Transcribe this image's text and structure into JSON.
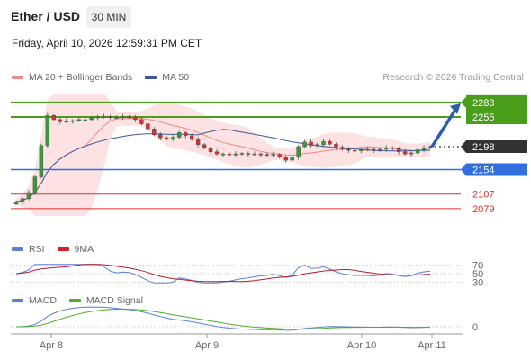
{
  "header": {
    "title": "Ether / USD",
    "timeframe": "30 MIN",
    "datetime": "Friday, April 10, 2026 12:59:31 PM CET"
  },
  "legends": {
    "price": [
      {
        "label": "MA 20 + Bollinger Bands",
        "color": "#f08a80"
      },
      {
        "label": "MA 50",
        "color": "#3a5a9a"
      }
    ],
    "rsi": [
      {
        "label": "RSI",
        "color": "#5c7fd6"
      },
      {
        "label": "9MA",
        "color": "#d62020"
      }
    ],
    "macd": [
      {
        "label": "MACD",
        "color": "#5c7fd6"
      },
      {
        "label": "MACD Signal",
        "color": "#4caf2a"
      }
    ]
  },
  "attribution": "Research © 2026 Trading Central",
  "chart_data": {
    "type": "candlestick",
    "instrument": "Ether / USD",
    "interval": "30 MIN",
    "x_ticks": [
      "Apr 8",
      "Apr 9",
      "Apr 10",
      "Apr 11"
    ],
    "price_ylim": [
      2065,
      2300
    ],
    "current_price": {
      "value": "2198",
      "color": "#333333"
    },
    "resistance_levels": [
      {
        "value": "2283",
        "color": "#4a9e1a"
      },
      {
        "value": "2255",
        "color": "#4a9e1a"
      }
    ],
    "pivot": {
      "value": "2154",
      "color": "#2f6fe0"
    },
    "support_levels": [
      {
        "value": "2107",
        "color": "#d83030"
      },
      {
        "value": "2079",
        "color": "#d83030"
      }
    ],
    "forecast_arrow": {
      "from": 2198,
      "to": 2276,
      "color": "#2a5db0"
    },
    "close_series": [
      2092,
      2098,
      2110,
      2140,
      2200,
      2258,
      2250,
      2246,
      2247,
      2248,
      2250,
      2250,
      2254,
      2255,
      2256,
      2254,
      2254,
      2256,
      2255,
      2250,
      2242,
      2232,
      2221,
      2215,
      2213,
      2216,
      2225,
      2219,
      2212,
      2202,
      2195,
      2188,
      2184,
      2184,
      2183,
      2184,
      2185,
      2184,
      2184,
      2183,
      2182,
      2183,
      2178,
      2172,
      2178,
      2198,
      2207,
      2200,
      2202,
      2208,
      2203,
      2197,
      2193,
      2191,
      2190,
      2192,
      2193,
      2191,
      2193,
      2196,
      2194,
      2188,
      2184,
      2186,
      2192,
      2196,
      2198
    ],
    "rsi": {
      "levels": [
        "70",
        "50",
        "30"
      ],
      "ylim": [
        20,
        80
      ]
    },
    "macd": {
      "level": "0"
    }
  }
}
